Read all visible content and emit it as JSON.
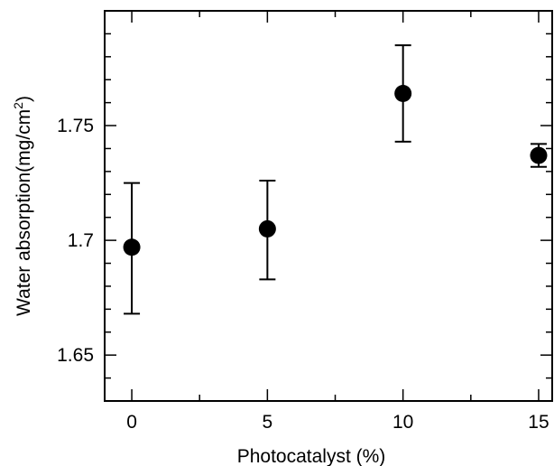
{
  "chart_data": {
    "type": "scatter",
    "title": "",
    "xlabel": "Photocatalyst (%)",
    "ylabel": "Water absorption(mg/cm",
    "ylabel_superscript": "2",
    "ylabel_suffix": ")",
    "xlim": [
      -1.0,
      15.5
    ],
    "ylim": [
      1.63,
      1.8
    ],
    "x_ticks": [
      0,
      5,
      10,
      15
    ],
    "x_tick_labels": [
      "0",
      "5",
      "10",
      "15"
    ],
    "y_ticks": [
      1.65,
      1.7,
      1.75
    ],
    "y_tick_labels": [
      "1.65",
      "1.7",
      "1.75"
    ],
    "x_minor_tick_step": 2.5,
    "y_minor_tick_step": 0.01,
    "grid": false,
    "legend": "none",
    "marker_color": "#000000",
    "points": [
      {
        "x": 0,
        "y": 1.697,
        "err_low": 1.668,
        "err_high": 1.725
      },
      {
        "x": 5,
        "y": 1.705,
        "err_low": 1.683,
        "err_high": 1.726
      },
      {
        "x": 10,
        "y": 1.764,
        "err_low": 1.743,
        "err_high": 1.785
      },
      {
        "x": 15,
        "y": 1.737,
        "err_low": 1.732,
        "err_high": 1.742
      }
    ]
  }
}
